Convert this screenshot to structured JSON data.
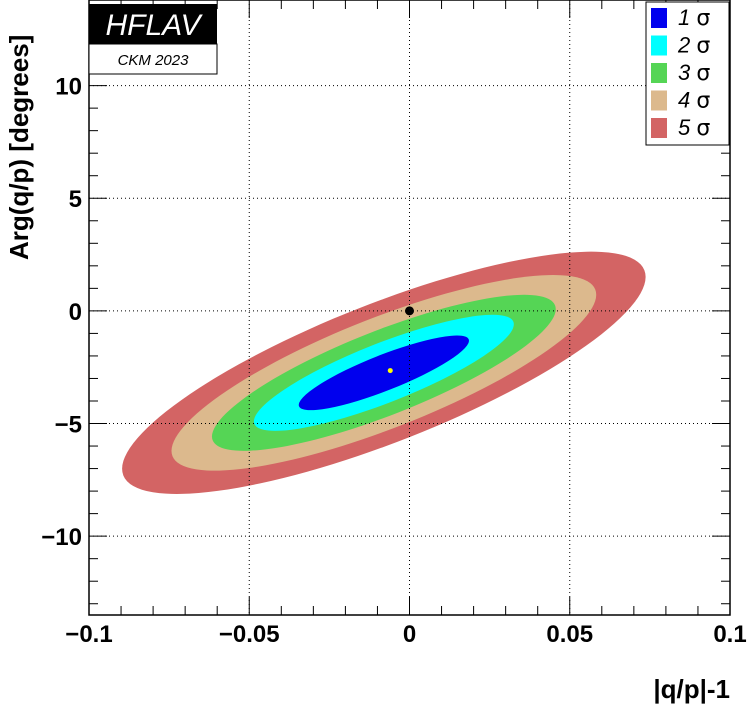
{
  "chart_data": {
    "type": "contour",
    "xlabel": "|q/p|-1",
    "ylabel": "Arg(q/p) [degrees]",
    "xlim": [
      -0.1,
      0.1
    ],
    "ylim": [
      -13.5,
      13.8
    ],
    "x_ticks": [
      -0.1,
      -0.05,
      0,
      0.05,
      0.1
    ],
    "x_tick_labels": [
      "−0.1",
      "−0.05",
      "0",
      "0.05",
      "0.1"
    ],
    "y_ticks": [
      -10,
      -5,
      0,
      5,
      10
    ],
    "y_tick_labels": [
      "−10",
      "−5",
      "0",
      "5",
      "10"
    ],
    "grid": true,
    "legend_position": "top-right",
    "best_fit": {
      "x": -0.006,
      "y": -2.65,
      "color": "#ffff00"
    },
    "reference_point": {
      "x": 0.0,
      "y": 0.0,
      "color": "#000000"
    },
    "contours": [
      {
        "name": "5",
        "color": "#d36464",
        "center_x": -0.008,
        "center_y": -2.75,
        "half_extent_x": 0.0875,
        "half_extent_y": 6.4
      },
      {
        "name": "4",
        "color": "#dcb98d",
        "center_x": -0.008,
        "center_y": -2.75,
        "half_extent_x": 0.071,
        "half_extent_y": 5.1
      },
      {
        "name": "3",
        "color": "#55d555",
        "center_x": -0.008,
        "center_y": -2.75,
        "half_extent_x": 0.0575,
        "half_extent_y": 3.9
      },
      {
        "name": "2",
        "color": "#00ffff",
        "center_x": -0.008,
        "center_y": -2.75,
        "half_extent_x": 0.0435,
        "half_extent_y": 2.75
      },
      {
        "name": "1",
        "color": "#0000ee",
        "center_x": -0.008,
        "center_y": -2.75,
        "half_extent_x": 0.0285,
        "half_extent_y": 1.65
      }
    ],
    "legend_entries": [
      {
        "label": "1",
        "color": "#0000ee"
      },
      {
        "label": "2",
        "color": "#00ffff"
      },
      {
        "label": "3",
        "color": "#55d555"
      },
      {
        "label": "4",
        "color": "#dcb98d"
      },
      {
        "label": "5",
        "color": "#d36464"
      }
    ],
    "sigma_symbol": "σ"
  },
  "logo": {
    "name": "HFLAV",
    "subtitle": "CKM 2023"
  }
}
